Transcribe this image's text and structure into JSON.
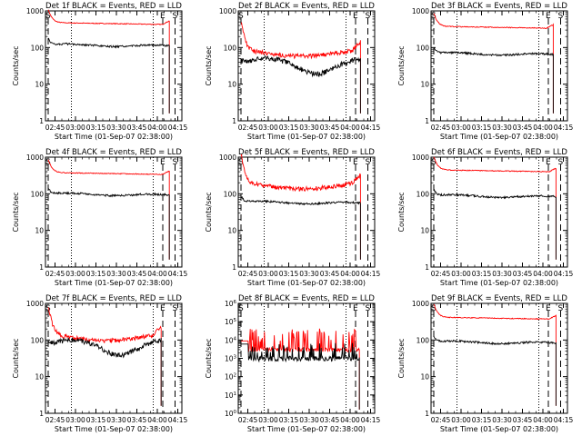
{
  "figure": {
    "background": "#ffffff",
    "events_color": "#000000",
    "lld_color": "#ff0000"
  },
  "chart_data": [
    {
      "type": "line",
      "title": "Det 1f BLACK = Events, RED = LLD",
      "ylabel": "Counts/sec",
      "xlabel": "Start Time (01-Sep-07 02:38:00)",
      "yscale": "log",
      "ylim": [
        1,
        1000
      ],
      "ytick_labels": [
        "1",
        "10",
        "100",
        "1000"
      ],
      "xlim": [
        "02:38",
        "04:18"
      ],
      "x_tick_labels": [
        "02:45",
        "03:00",
        "03:15",
        "03:30",
        "03:45",
        "04:00",
        "04:15"
      ],
      "markers": {
        "S1": "02:40",
        "E": "04:04",
        "S2": "04:13"
      },
      "dotted_lines": [
        "02:57",
        "03:57"
      ],
      "series": [
        {
          "color": "#ff0000",
          "profile": "lld_flat",
          "level": 480,
          "drop": "04:09"
        },
        {
          "color": "#000000",
          "profile": "evt_flat",
          "level": 120,
          "drop": "04:09"
        }
      ]
    },
    {
      "type": "line",
      "title": "Det 2f BLACK = Events, RED = LLD",
      "ylabel": "Counts/sec",
      "xlabel": "Start Time (01-Sep-07 02:38:00)",
      "yscale": "log",
      "ylim": [
        1,
        1000
      ],
      "ytick_labels": [
        "1",
        "10",
        "100",
        "1000"
      ],
      "xlim": [
        "02:38",
        "04:18"
      ],
      "x_tick_labels": [
        "02:45",
        "03:00",
        "03:15",
        "03:30",
        "03:45",
        "04:00",
        "04:15"
      ],
      "markers": {
        "S1": "02:40",
        "E": "04:04",
        "S2": "04:13"
      },
      "dotted_lines": [
        "02:57",
        "03:57"
      ],
      "series": [
        {
          "color": "#ff0000",
          "profile": "lld_dip",
          "level": 90,
          "drop": "04:08"
        },
        {
          "color": "#000000",
          "profile": "evt_wave",
          "level": 35,
          "drop": "04:08"
        }
      ]
    },
    {
      "type": "line",
      "title": "Det 3f BLACK = Events, RED = LLD",
      "ylabel": "Counts/sec",
      "xlabel": "Start Time (01-Sep-07 02:38:00)",
      "yscale": "log",
      "ylim": [
        1,
        1000
      ],
      "ytick_labels": [
        "1",
        "10",
        "100",
        "1000"
      ],
      "xlim": [
        "02:38",
        "04:18"
      ],
      "x_tick_labels": [
        "02:45",
        "03:00",
        "03:15",
        "03:30",
        "03:45",
        "04:00",
        "04:15"
      ],
      "markers": {
        "S1": "02:40",
        "E": "04:04",
        "S2": "04:13"
      },
      "dotted_lines": [
        "02:57",
        "03:57"
      ],
      "series": [
        {
          "color": "#ff0000",
          "profile": "lld_flat",
          "level": 380,
          "drop": "04:08"
        },
        {
          "color": "#000000",
          "profile": "evt_flat",
          "level": 70,
          "drop": "04:08"
        }
      ]
    },
    {
      "type": "line",
      "title": "Det 4f BLACK = Events, RED = LLD",
      "ylabel": "Counts/sec",
      "xlabel": "Start Time (01-Sep-07 02:38:00)",
      "yscale": "log",
      "ylim": [
        1,
        1000
      ],
      "ytick_labels": [
        "1",
        "10",
        "100",
        "1000"
      ],
      "xlim": [
        "02:38",
        "04:18"
      ],
      "x_tick_labels": [
        "02:45",
        "03:00",
        "03:15",
        "03:30",
        "03:45",
        "04:00",
        "04:15"
      ],
      "markers": {
        "S1": "02:40",
        "E": "04:04",
        "S2": "04:13"
      },
      "dotted_lines": [
        "02:57",
        "03:57"
      ],
      "series": [
        {
          "color": "#ff0000",
          "profile": "lld_flat",
          "level": 380,
          "drop": "04:09"
        },
        {
          "color": "#000000",
          "profile": "evt_flat",
          "level": 100,
          "drop": "04:09"
        }
      ]
    },
    {
      "type": "line",
      "title": "Det 5f BLACK = Events, RED = LLD",
      "ylabel": "Counts/sec",
      "xlabel": "Start Time (01-Sep-07 02:38:00)",
      "yscale": "log",
      "ylim": [
        1,
        1000
      ],
      "ytick_labels": [
        "1",
        "10",
        "100",
        "1000"
      ],
      "xlim": [
        "02:38",
        "04:18"
      ],
      "x_tick_labels": [
        "02:45",
        "03:00",
        "03:15",
        "03:30",
        "03:45",
        "04:00",
        "04:15"
      ],
      "markers": {
        "S1": "02:40",
        "E": "04:04",
        "S2": "04:13"
      },
      "dotted_lines": [
        "02:57",
        "03:57"
      ],
      "series": [
        {
          "color": "#ff0000",
          "profile": "lld_dip",
          "level": 210,
          "drop": "04:08"
        },
        {
          "color": "#000000",
          "profile": "evt_flat",
          "level": 60,
          "drop": "04:08"
        }
      ]
    },
    {
      "type": "line",
      "title": "Det 6f BLACK = Events, RED = LLD",
      "ylabel": "Counts/sec",
      "xlabel": "Start Time (01-Sep-07 02:38:00)",
      "yscale": "log",
      "ylim": [
        1,
        1000
      ],
      "ytick_labels": [
        "1",
        "10",
        "100",
        "1000"
      ],
      "xlim": [
        "02:38",
        "04:18"
      ],
      "x_tick_labels": [
        "02:45",
        "03:00",
        "03:15",
        "03:30",
        "03:45",
        "04:00",
        "04:15"
      ],
      "markers": {
        "S1": "02:40",
        "E": "04:04",
        "S2": "04:13"
      },
      "dotted_lines": [
        "02:57",
        "03:57"
      ],
      "series": [
        {
          "color": "#ff0000",
          "profile": "lld_flat",
          "level": 450,
          "drop": "04:10"
        },
        {
          "color": "#000000",
          "profile": "evt_flat",
          "level": 90,
          "drop": "04:10"
        }
      ]
    },
    {
      "type": "line",
      "title": "Det 7f BLACK = Events, RED = LLD",
      "ylabel": "Counts/sec",
      "xlabel": "Start Time (01-Sep-07 02:38:00)",
      "yscale": "log",
      "ylim": [
        1,
        1000
      ],
      "ytick_labels": [
        "1",
        "10",
        "100",
        "1000"
      ],
      "xlim": [
        "02:38",
        "04:18"
      ],
      "x_tick_labels": [
        "02:45",
        "03:00",
        "03:15",
        "03:30",
        "03:45",
        "04:00",
        "04:15"
      ],
      "markers": {
        "S1": "02:40",
        "E": "04:04",
        "S2": "04:13"
      },
      "dotted_lines": [
        "02:57",
        "03:57"
      ],
      "series": [
        {
          "color": "#ff0000",
          "profile": "lld_dip",
          "level": 150,
          "drop": "04:03"
        },
        {
          "color": "#000000",
          "profile": "evt_wave",
          "level": 70,
          "drop": "04:03"
        }
      ]
    },
    {
      "type": "line",
      "title": "Det 8f BLACK = Events, RED = LLD",
      "ylabel": "Counts/sec",
      "xlabel": "Start Time (01-Sep-07 02:38:00)",
      "yscale": "log",
      "ylim": [
        1,
        1000000
      ],
      "ytick_labels": [
        "10^0",
        "10^1",
        "10^2",
        "10^3",
        "10^4",
        "10^5",
        "10^6"
      ],
      "xlim": [
        "02:38",
        "04:18"
      ],
      "x_tick_labels": [
        "02:45",
        "03:00",
        "03:15",
        "03:30",
        "03:45",
        "04:00",
        "04:15"
      ],
      "markers": {
        "S1": "02:40",
        "E": "04:04",
        "S2": "04:13"
      },
      "dotted_lines": [
        "02:57",
        "03:57"
      ],
      "series": [
        {
          "color": "#ff0000",
          "profile": "spiky",
          "level": 3000,
          "drop": "04:07"
        },
        {
          "color": "#000000",
          "profile": "spiky_evt",
          "level": 1000,
          "drop": "04:07"
        }
      ]
    },
    {
      "type": "line",
      "title": "Det 9f BLACK = Events, RED = LLD",
      "ylabel": "Counts/sec",
      "xlabel": "Start Time (01-Sep-07 02:38:00)",
      "yscale": "log",
      "ylim": [
        1,
        1000
      ],
      "ytick_labels": [
        "1",
        "10",
        "100",
        "1000"
      ],
      "xlim": [
        "02:38",
        "04:18"
      ],
      "x_tick_labels": [
        "02:45",
        "03:00",
        "03:15",
        "03:30",
        "03:45",
        "04:00",
        "04:15"
      ],
      "markers": {
        "S1": "02:40",
        "E": "04:04",
        "S2": "04:13"
      },
      "dotted_lines": [
        "02:57",
        "03:57"
      ],
      "series": [
        {
          "color": "#ff0000",
          "profile": "lld_flat",
          "level": 420,
          "drop": "04:10"
        },
        {
          "color": "#000000",
          "profile": "evt_flat",
          "level": 90,
          "drop": "04:10"
        }
      ]
    }
  ]
}
